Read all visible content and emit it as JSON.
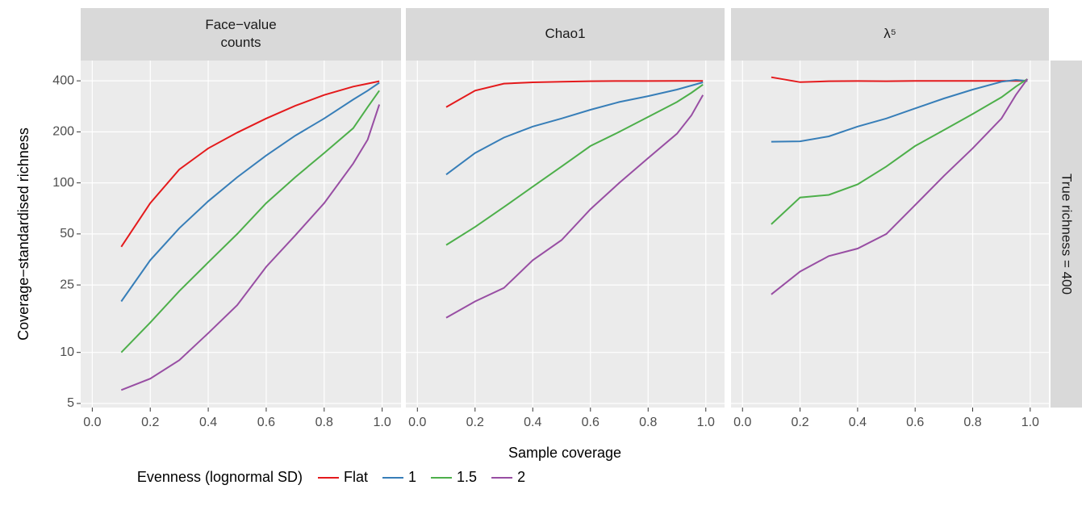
{
  "chart_data": {
    "type": "line",
    "log_y": true,
    "grid": true,
    "xlabel": "Sample coverage",
    "ylabel": "Coverage−standardised richness",
    "row_label": "True richness = 400",
    "legend_title": "Evenness (lognormal SD)",
    "legend_position": "bottom",
    "xlim": [
      -0.04,
      1.065
    ],
    "xticks": [
      {
        "value": 0,
        "label": "0.0"
      },
      0.2,
      0.4,
      0.6,
      0.8,
      {
        "value": 1,
        "label": "1.0"
      }
    ],
    "ylim": [
      4.73,
      527
    ],
    "yticks": [
      5,
      10,
      25,
      50,
      100,
      200,
      400
    ],
    "x": [
      0.1,
      0.2,
      0.3,
      0.4,
      0.5,
      0.6,
      0.7,
      0.8,
      0.9,
      0.95,
      0.99
    ],
    "series_info": [
      {
        "name": "Flat",
        "color": "#e41a1c"
      },
      {
        "name": "1",
        "color": "#377eb8"
      },
      {
        "name": "1.5",
        "color": "#4daf4a"
      },
      {
        "name": "2",
        "color": "#984ea3"
      }
    ],
    "panels": [
      {
        "title": [
          "Face−value",
          "counts"
        ],
        "series": [
          {
            "values": [
              42,
              76,
              120,
              160,
              198,
              240,
              285,
              330,
              370,
              385,
              398
            ]
          },
          {
            "values": [
              20,
              35,
              54,
              78,
              108,
              145,
              190,
              240,
              310,
              350,
              390
            ]
          },
          {
            "values": [
              10,
              15,
              23,
              34,
              50,
              76,
              108,
              150,
              210,
              280,
              350
            ]
          },
          {
            "values": [
              6,
              7,
              9,
              13,
              19,
              32,
              49,
              76,
              130,
              180,
              290
            ]
          }
        ]
      },
      {
        "title": [
          "Chao1"
        ],
        "series": [
          {
            "values": [
              280,
              350,
              385,
              392,
              395,
              398,
              399,
              399,
              400,
              400,
              400
            ]
          },
          {
            "values": [
              112,
              150,
              185,
              215,
              240,
              270,
              300,
              325,
              355,
              375,
              392
            ]
          },
          {
            "values": [
              43,
              55,
              72,
              95,
              125,
              165,
              200,
              245,
              300,
              340,
              380
            ]
          },
          {
            "values": [
              16,
              20,
              24,
              35,
              46,
              70,
              100,
              140,
              195,
              250,
              330
            ]
          }
        ]
      },
      {
        "title": [
          "λ⁵"
        ],
        "series": [
          {
            "values": [
              420,
              393,
              398,
              399,
              398,
              400,
              400,
              400,
              400,
              400,
              400
            ]
          },
          {
            "values": [
              175,
              176,
              188,
              215,
              240,
              275,
              315,
              355,
              395,
              405,
              400
            ]
          },
          {
            "values": [
              57,
              82,
              85,
              98,
              125,
              165,
              205,
              255,
              320,
              370,
              410
            ]
          },
          {
            "values": [
              22,
              30,
              37,
              41,
              50,
              74,
              110,
              160,
              240,
              330,
              410
            ]
          }
        ]
      }
    ]
  }
}
